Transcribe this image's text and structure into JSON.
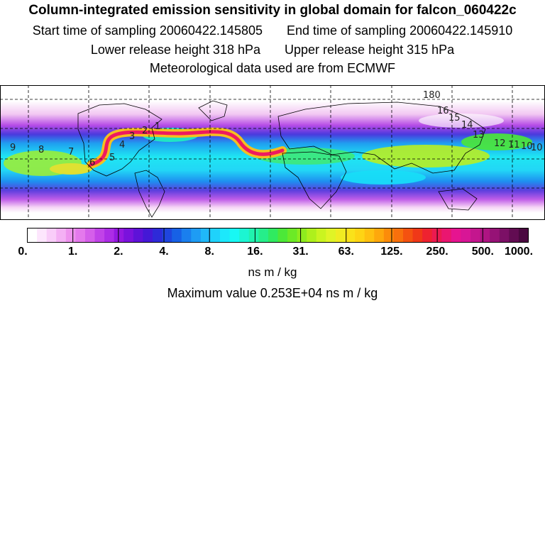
{
  "title": "Column-integrated emission sensitivity in global domain for falcon_060422c",
  "start_label": "Start time of sampling 20060422.145805",
  "end_label": "End time of sampling 20060422.145910",
  "lower_label": "Lower release height  318 hPa",
  "upper_label": "Upper release height  315 hPa",
  "met_label": "Meteorological data used are from ECMWF",
  "colorbar": {
    "colors": [
      "#ffffff",
      "#fde6fd",
      "#f9cdf9",
      "#f4b0f4",
      "#ee92ee",
      "#e479ec",
      "#d55fea",
      "#c143e8",
      "#ad2de6",
      "#9418e0",
      "#7a12dc",
      "#5e12d8",
      "#4418d6",
      "#2e2ad8",
      "#1f45de",
      "#1761e6",
      "#1a7fee",
      "#1e9cf4",
      "#20b8f8",
      "#1fd2fb",
      "#1ce8fc",
      "#18f8f4",
      "#1cf5d2",
      "#20f2ae",
      "#26ee8a",
      "#30ea60",
      "#4ce838",
      "#6cea26",
      "#8eec1e",
      "#aef01c",
      "#caf420",
      "#e0f426",
      "#f0ec22",
      "#fae21a",
      "#fed414",
      "#ffc010",
      "#fea80c",
      "#fc8c0a",
      "#f8700c",
      "#f45210",
      "#f03818",
      "#ee2230",
      "#ec1a50",
      "#ea1670",
      "#e61490",
      "#d81696",
      "#c4168e",
      "#ae1482",
      "#961276",
      "#7c1066",
      "#620c52",
      "#4a0840"
    ],
    "labels": [
      "0.",
      "1.",
      "2.",
      "4.",
      "8.",
      "16.",
      "31.",
      "63.",
      "125.",
      "250.",
      "500.",
      "1000."
    ]
  },
  "unit_label": "ns m / kg",
  "max_label": "Maximum value  0.253E+04 ns m / kg",
  "map_numbers": [
    {
      "text": "9"
    },
    {
      "text": "8"
    },
    {
      "text": "7"
    },
    {
      "text": "6"
    },
    {
      "text": "5"
    },
    {
      "text": "4"
    },
    {
      "text": "3"
    },
    {
      "text": "2"
    },
    {
      "text": "1"
    },
    {
      "text": "10"
    },
    {
      "text": "180"
    },
    {
      "text": "16"
    },
    {
      "text": "15"
    },
    {
      "text": "14"
    },
    {
      "text": "13"
    },
    {
      "text": "12"
    },
    {
      "text": "11"
    },
    {
      "text": "10"
    }
  ]
}
